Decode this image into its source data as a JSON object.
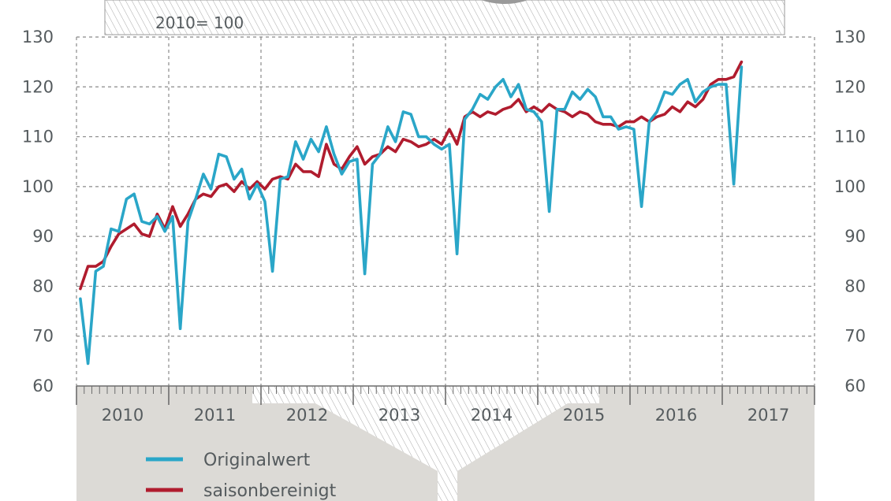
{
  "header": {
    "subtitle": "2010= 100"
  },
  "colors": {
    "original": "#2aa6c8",
    "seasonal": "#b01c2e",
    "grid": "#8a8a8a",
    "text": "#555b5e",
    "panel": "#dcdad6"
  },
  "legend": {
    "original_label": "Originalwert",
    "seasonal_label": "saisonbereinigt"
  },
  "chart_data": {
    "type": "line",
    "ylim": [
      60,
      130
    ],
    "yticks": [
      60,
      70,
      80,
      90,
      100,
      110,
      120,
      130
    ],
    "grid": true,
    "legend_position": "bottom-left",
    "x_start": "2010-01",
    "years": [
      "2010",
      "2011",
      "2012",
      "2013",
      "2014",
      "2015",
      "2016",
      "2017"
    ],
    "series": [
      {
        "name": "Originalwert",
        "values": [
          77.5,
          64.5,
          83,
          84,
          91.5,
          91,
          97.5,
          98.5,
          93,
          92.5,
          94,
          91,
          94,
          71.5,
          93,
          97.5,
          102.5,
          99.5,
          106.5,
          106,
          101.5,
          103.5,
          97.5,
          100.5,
          97,
          83,
          101.5,
          102,
          109,
          105.5,
          109.5,
          107,
          112,
          106.5,
          102.5,
          105,
          105.5,
          82.5,
          104.5,
          106.5,
          112,
          109,
          115,
          114.5,
          110,
          110,
          108.5,
          107.5,
          108.5,
          86.5,
          113.5,
          115.5,
          118.5,
          117.5,
          120,
          121.5,
          118,
          120.5,
          115.5,
          115,
          113,
          95,
          115.5,
          115.5,
          119,
          117.5,
          119.5,
          118,
          114,
          114,
          111.5,
          112,
          111.5,
          96,
          113,
          115,
          119,
          118.5,
          120.5,
          121.5,
          117,
          119,
          120,
          120.5,
          120.5,
          100.5,
          124
        ]
      },
      {
        "name": "saisonbereinigt",
        "values": [
          79.5,
          84,
          84,
          85,
          88,
          90.5,
          91.5,
          92.5,
          90.5,
          90,
          94.5,
          91.5,
          96,
          92,
          94.5,
          97.5,
          98.5,
          98,
          100,
          100.5,
          99,
          101,
          99.5,
          101,
          99.5,
          101.5,
          102,
          101.5,
          104.5,
          103,
          103,
          102,
          108.5,
          104.5,
          103.5,
          106,
          108,
          104.5,
          106,
          106.5,
          108,
          107,
          109.5,
          109,
          108,
          108.5,
          109.5,
          108.5,
          111.5,
          108.5,
          114,
          115,
          114,
          115,
          114.5,
          115.5,
          116,
          117.5,
          115,
          116,
          115,
          116.5,
          115.5,
          115,
          114,
          115,
          114.5,
          113,
          112.5,
          112.5,
          112,
          113,
          113,
          114,
          113,
          114,
          114.5,
          116,
          115,
          117,
          116,
          117.5,
          120.5,
          121.5,
          121.5,
          122,
          125
        ]
      }
    ]
  }
}
